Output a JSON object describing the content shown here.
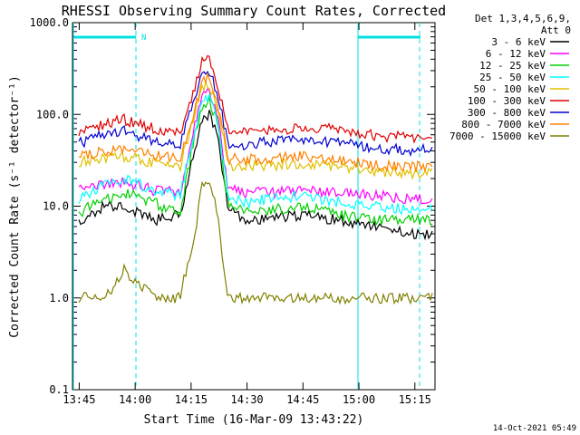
{
  "chart_data": {
    "type": "line",
    "title": "RHESSI Observing Summary Count Rates, Corrected",
    "xlabel": "Start Time (16-Mar-09 13:43:22)",
    "ylabel": "Corrected Count Rate (s⁻¹ detector⁻¹)",
    "yscale": "log",
    "ylim": [
      0.1,
      1000
    ],
    "xlim_min": [
      13.72,
      15.34
    ],
    "x_ticks": [
      "13:45",
      "14:00",
      "14:15",
      "14:30",
      "14:45",
      "15:00",
      "15:15"
    ],
    "y_ticks": [
      "0.1",
      "1.0",
      "10.0",
      "100.0",
      "1000.0"
    ],
    "legend_header": [
      "Det 1,3,4,5,6,9,",
      "Att 0"
    ],
    "legend_position": "outside-right-top",
    "night_flag_label": "N",
    "footer_stamp": "14-Oct-2021 05:49",
    "series": [
      {
        "name": "3 - 6 keV",
        "color": "#000000",
        "x": [
          "13:45",
          "13:52",
          "13:57",
          "14:05",
          "14:12",
          "14:16",
          "14:18",
          "14:20",
          "14:22",
          "14:25",
          "14:30",
          "14:36",
          "14:45",
          "14:55",
          "15:05",
          "15:15",
          "15:20"
        ],
        "values": [
          7,
          10,
          10,
          7,
          8,
          40,
          90,
          100,
          60,
          9,
          7,
          7.5,
          8,
          7,
          6,
          5,
          5
        ]
      },
      {
        "name": "6 - 12 keV",
        "color": "#ff00ff",
        "x": [
          "13:45",
          "13:52",
          "13:57",
          "14:05",
          "14:12",
          "14:16",
          "14:18",
          "14:20",
          "14:22",
          "14:25",
          "14:30",
          "14:36",
          "14:45",
          "14:55",
          "15:05",
          "15:15",
          "15:20"
        ],
        "values": [
          15,
          17,
          18,
          15,
          14,
          80,
          170,
          180,
          100,
          15,
          14,
          14,
          15,
          14,
          13,
          12,
          12
        ]
      },
      {
        "name": "12 - 25 keV",
        "color": "#00d000",
        "x": [
          "13:45",
          "13:52",
          "13:57",
          "14:05",
          "14:12",
          "14:16",
          "14:18",
          "14:20",
          "14:22",
          "14:25",
          "14:30",
          "14:36",
          "14:45",
          "14:55",
          "15:05",
          "15:15",
          "15:20"
        ],
        "values": [
          8.5,
          12,
          14,
          11,
          8,
          60,
          130,
          140,
          80,
          10,
          8.5,
          9,
          10,
          8,
          7,
          7,
          7
        ]
      },
      {
        "name": "25 - 50 keV",
        "color": "#00ffff",
        "x": [
          "13:45",
          "13:52",
          "13:57",
          "14:05",
          "14:12",
          "14:16",
          "14:18",
          "14:20",
          "14:22",
          "14:25",
          "14:30",
          "14:36",
          "14:45",
          "14:55",
          "15:05",
          "15:15",
          "15:20"
        ],
        "values": [
          12,
          17,
          20,
          15,
          13,
          70,
          150,
          160,
          90,
          13,
          11,
          12,
          13,
          11,
          10,
          9,
          9.5
        ]
      },
      {
        "name": "50 - 100 keV",
        "color": "#e0c000",
        "x": [
          "13:45",
          "13:52",
          "13:57",
          "14:05",
          "14:12",
          "14:16",
          "14:18",
          "14:20",
          "14:22",
          "14:25",
          "14:30",
          "14:36",
          "14:45",
          "14:55",
          "15:05",
          "15:15",
          "15:20"
        ],
        "values": [
          30,
          34,
          35,
          30,
          27,
          100,
          200,
          210,
          120,
          28,
          27,
          28,
          29,
          27,
          24,
          23,
          23
        ]
      },
      {
        "name": "100 - 300 keV",
        "color": "#e00000",
        "x": [
          "13:45",
          "13:52",
          "13:57",
          "14:05",
          "14:12",
          "14:16",
          "14:18",
          "14:20",
          "14:22",
          "14:25",
          "14:30",
          "14:36",
          "14:45",
          "14:55",
          "15:05",
          "15:15",
          "15:20"
        ],
        "values": [
          65,
          80,
          88,
          70,
          62,
          200,
          380,
          400,
          220,
          65,
          62,
          66,
          72,
          68,
          58,
          56,
          58
        ]
      },
      {
        "name": "300 - 800 keV",
        "color": "#0000d0",
        "x": [
          "13:45",
          "13:52",
          "13:57",
          "14:05",
          "14:12",
          "14:16",
          "14:18",
          "14:20",
          "14:22",
          "14:25",
          "14:30",
          "14:36",
          "14:45",
          "14:55",
          "15:05",
          "15:15",
          "15:20"
        ],
        "values": [
          48,
          60,
          65,
          52,
          47,
          150,
          280,
          300,
          170,
          48,
          47,
          50,
          52,
          50,
          43,
          41,
          43
        ]
      },
      {
        "name": "800 - 7000 keV",
        "color": "#ff8000",
        "x": [
          "13:45",
          "13:52",
          "13:57",
          "14:05",
          "14:12",
          "14:16",
          "14:18",
          "14:20",
          "14:22",
          "14:25",
          "14:30",
          "14:36",
          "14:45",
          "14:55",
          "15:05",
          "15:15",
          "15:20"
        ],
        "values": [
          34,
          40,
          42,
          36,
          32,
          110,
          230,
          250,
          140,
          33,
          32,
          33,
          35,
          32,
          28,
          27,
          27
        ]
      },
      {
        "name": "7000 - 15000 keV",
        "color": "#808000",
        "x": [
          "13:45",
          "13:52",
          "13:57",
          "14:05",
          "14:12",
          "14:16",
          "14:18",
          "14:20",
          "14:22",
          "14:25",
          "14:30",
          "14:36",
          "14:45",
          "14:55",
          "15:05",
          "15:15",
          "15:20"
        ],
        "values": [
          1,
          1,
          2,
          1,
          1,
          5,
          18,
          20,
          8,
          1,
          1,
          1,
          1,
          1,
          1,
          1,
          1
        ]
      }
    ]
  }
}
